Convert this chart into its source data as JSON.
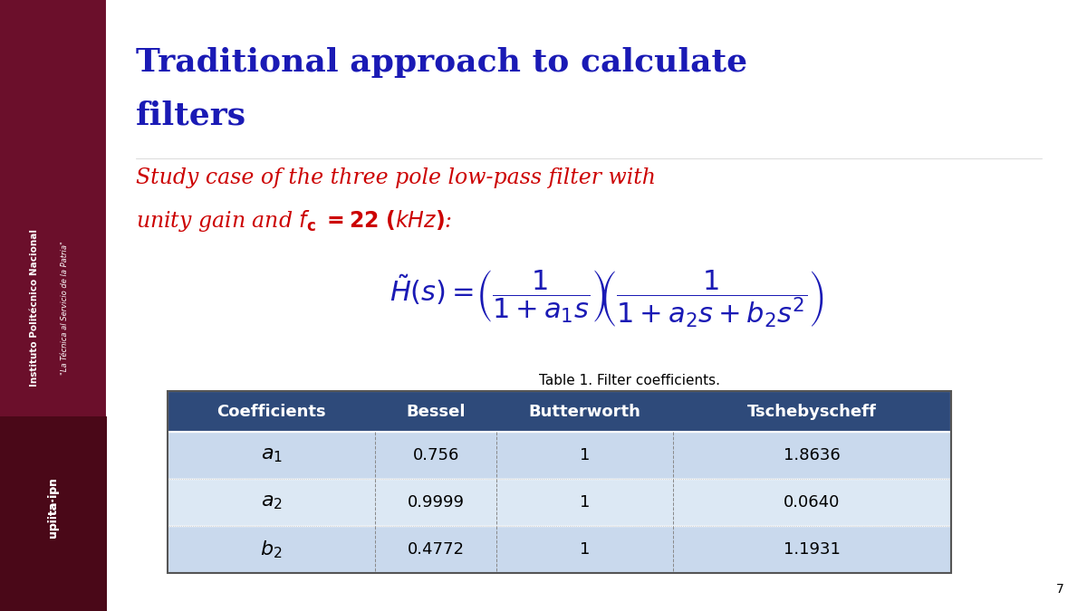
{
  "title_line1": "Traditional approach to calculate",
  "title_line2": "filters",
  "title_color": "#1a1ab5",
  "subtitle_color": "#cc0000",
  "bg_color": "#ffffff",
  "sidebar_color": "#6b0f2b",
  "table_header_bg": "#2e4a7a",
  "table_row_bg_1": "#c9d9ed",
  "table_row_bg_2": "#dce8f4",
  "table_row_bg_3": "#c9d9ed",
  "table_header_text": "#ffffff",
  "table_caption": "Table 1. Filter coefficients.",
  "col_headers": [
    "Coefficients",
    "Bessel",
    "Butterworth",
    "Tschebyscheff"
  ],
  "row_labels_latex": [
    "$a_1$",
    "$a_2$",
    "$b_2$"
  ],
  "table_data": [
    [
      "0.756",
      "1",
      "1.8636"
    ],
    [
      "0.9999",
      "1",
      "0.0640"
    ],
    [
      "0.4772",
      "1",
      "1.1931"
    ]
  ],
  "page_number": "7",
  "sidebar_text1": "Instituto Politécnico Nacional",
  "sidebar_text2": "\"La Técnica al Servicio de la Patria\"",
  "sidebar_text3": "upiita·ipn",
  "formula_color": "#1a1ab5",
  "title_fontsize": 26,
  "subtitle_fontsize": 17,
  "formula_fontsize": 22,
  "table_header_fontsize": 13,
  "table_cell_fontsize": 13,
  "table_label_fontsize": 16
}
